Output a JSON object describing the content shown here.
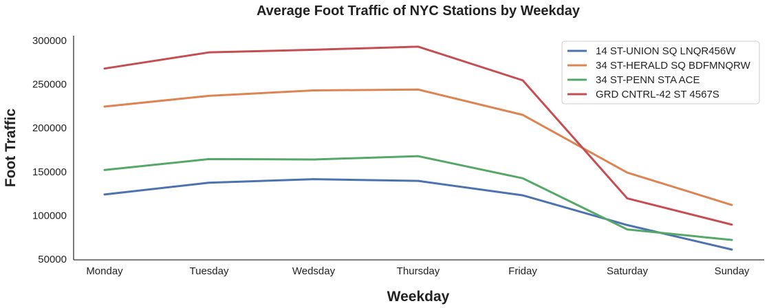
{
  "chart_data": {
    "type": "line",
    "title": "Average Foot Traffic of NYC Stations by Weekday",
    "xlabel": "Weekday",
    "ylabel": "Foot Traffic",
    "categories": [
      "Monday",
      "Tuesday",
      "Wedsday",
      "Thursday",
      "Friday",
      "Saturday",
      "Sunday"
    ],
    "ylim": [
      50000,
      305000
    ],
    "yticks": [
      50000,
      100000,
      150000,
      200000,
      250000,
      300000
    ],
    "grid": false,
    "legend_position": "top-right",
    "series": [
      {
        "name": "14 ST-UNION SQ LNQR456W",
        "color": "#4c72b0",
        "values": [
          124000,
          137500,
          141500,
          139500,
          123000,
          89000,
          61000
        ]
      },
      {
        "name": "34 ST-HERALD SQ BDFMNQRW",
        "color": "#dd8452",
        "values": [
          224500,
          236800,
          243000,
          244000,
          215000,
          149000,
          112000
        ]
      },
      {
        "name": "34 ST-PENN STA ACE",
        "color": "#55a868",
        "values": [
          152000,
          164500,
          164000,
          167800,
          142500,
          84000,
          72000
        ]
      },
      {
        "name": "GRD CNTRL-42 ST 4567S",
        "color": "#c44e52",
        "values": [
          268000,
          286500,
          289500,
          293000,
          254500,
          119500,
          89500
        ]
      }
    ]
  }
}
